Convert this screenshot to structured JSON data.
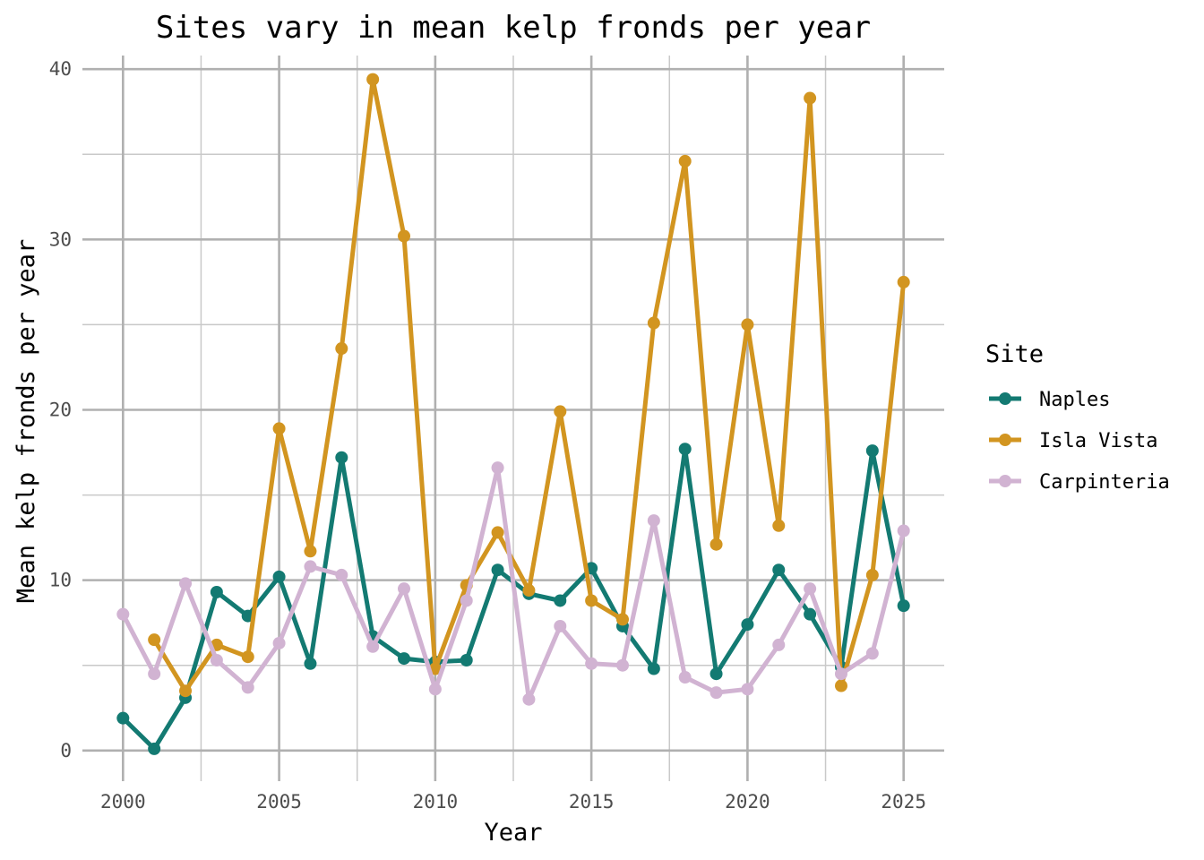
{
  "chart_data": {
    "type": "line",
    "title": "Sites vary in mean kelp fronds per year",
    "xlabel": "Year",
    "ylabel": "Mean kelp fronds per year",
    "xlim": [
      1998.7,
      2026.3
    ],
    "ylim": [
      -1.8,
      40.8
    ],
    "x_ticks": [
      2000,
      2005,
      2010,
      2015,
      2020,
      2025
    ],
    "x_minor_ticks": [
      2002.5,
      2007.5,
      2012.5,
      2017.5,
      2022.5
    ],
    "y_ticks": [
      0,
      10,
      20,
      30,
      40
    ],
    "y_minor_ticks": [
      5,
      15,
      25,
      35
    ],
    "grid": true,
    "legend_title": "Site",
    "legend_position": "right",
    "x": [
      2000,
      2001,
      2002,
      2003,
      2004,
      2005,
      2006,
      2007,
      2008,
      2009,
      2010,
      2011,
      2012,
      2013,
      2014,
      2015,
      2016,
      2017,
      2018,
      2019,
      2020,
      2021,
      2022,
      2023,
      2024,
      2025
    ],
    "series": [
      {
        "name": "Naples",
        "color": "#137a72",
        "values": [
          1.9,
          0.1,
          3.1,
          9.3,
          7.9,
          10.2,
          5.1,
          17.2,
          6.7,
          5.4,
          5.2,
          5.3,
          10.6,
          9.2,
          8.8,
          10.7,
          7.3,
          4.8,
          17.7,
          4.5,
          7.4,
          10.6,
          8.0,
          4.9,
          17.6,
          8.5
        ]
      },
      {
        "name": "Isla Vista",
        "color": "#d29520",
        "values": [
          null,
          6.5,
          3.5,
          6.2,
          5.5,
          18.9,
          11.7,
          23.6,
          39.4,
          30.2,
          4.8,
          9.7,
          12.8,
          9.4,
          19.9,
          8.8,
          7.7,
          25.1,
          34.6,
          12.1,
          25.0,
          13.2,
          38.3,
          3.8,
          10.3,
          27.5
        ]
      },
      {
        "name": "Carpinteria",
        "color": "#d1b3d2",
        "values": [
          8.0,
          4.5,
          9.8,
          5.3,
          3.7,
          6.3,
          10.8,
          10.3,
          6.1,
          9.5,
          3.6,
          8.8,
          16.6,
          3.0,
          7.3,
          5.1,
          5.0,
          13.5,
          4.3,
          3.4,
          3.6,
          6.2,
          9.5,
          4.5,
          5.7,
          12.9
        ]
      }
    ]
  }
}
